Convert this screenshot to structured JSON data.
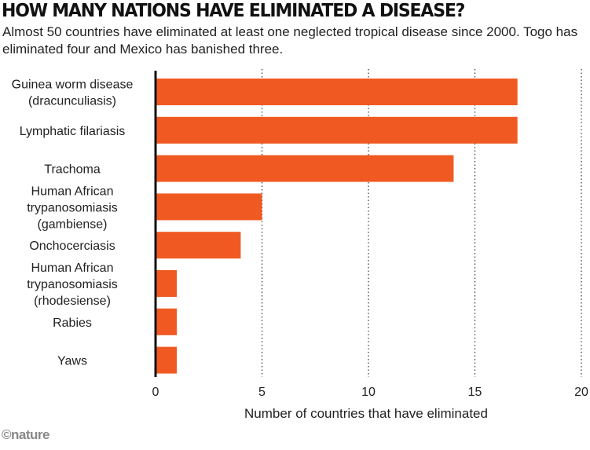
{
  "header": {
    "title": "HOW MANY NATIONS HAVE ELIMINATED A DISEASE?",
    "subtitle": "Almost 50 countries have eliminated at least one neglected tropical disease since 2000. Togo has eliminated four and Mexico has banished three."
  },
  "chart_data": {
    "type": "bar",
    "orientation": "horizontal",
    "categories": [
      "Guinea worm disease (dracunculiasis)",
      "Lymphatic filariasis",
      "Trachoma",
      "Human African trypanosomiasis (gambiense)",
      "Onchocerciasis",
      "Human African trypanosomiasis (rhodesiense)",
      "Rabies",
      "Yaws"
    ],
    "category_lines": [
      [
        "Guinea worm disease",
        "(dracunculiasis)"
      ],
      [
        "Lymphatic filariasis"
      ],
      [
        "Trachoma"
      ],
      [
        "Human African",
        "trypanosomiasis",
        "(gambiense)"
      ],
      [
        "Onchocerciasis"
      ],
      [
        "Human African",
        "trypanosomiasis",
        "(rhodesiense)"
      ],
      [
        "Rabies"
      ],
      [
        "Yaws"
      ]
    ],
    "values": [
      17,
      17,
      14,
      5,
      4,
      1,
      1,
      1
    ],
    "xlabel": "Number of countries that have eliminated",
    "ylabel": "",
    "xlim": [
      0,
      20
    ],
    "xticks": [
      "0",
      "5",
      "10",
      "15",
      "20"
    ],
    "grid": "vertical dotted",
    "bar_color": "#f05a22"
  },
  "footer": {
    "credit": "©nature"
  }
}
